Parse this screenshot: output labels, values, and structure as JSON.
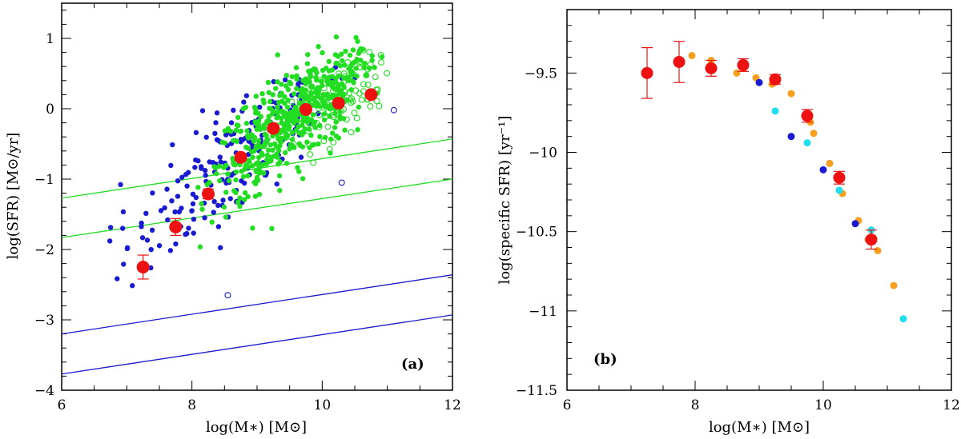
{
  "chart_data": [
    {
      "type": "scatter",
      "panel_label": "(a)",
      "xlabel": "log(M∗)   [M⊙]",
      "ylabel": "log(SFR)  [M⊙/yr]",
      "xlim": [
        6,
        12
      ],
      "ylim": [
        -4,
        1.5
      ],
      "xticks": [
        6,
        8,
        10,
        12
      ],
      "yticks": [
        -4,
        -3,
        -2,
        -1,
        0,
        1
      ],
      "colors": {
        "green": "#22dd22",
        "blue": "#1a1ad0",
        "red": "#ee1111"
      },
      "series": [
        {
          "name": "binned means",
          "color": "#ee1111",
          "x": [
            7.25,
            7.75,
            8.25,
            8.75,
            9.25,
            9.75,
            10.25,
            10.75
          ],
          "y": [
            -2.25,
            -1.68,
            -1.21,
            -0.69,
            -0.28,
            -0.01,
            0.08,
            0.2
          ],
          "err": [
            0.17,
            0.12,
            0.07,
            0.05,
            0.04,
            0.03,
            0.03,
            0.04
          ]
        }
      ],
      "lines": [
        {
          "name": "green upper limit line",
          "color": "#22dd22",
          "x": [
            6,
            12
          ],
          "y": [
            -1.27,
            -0.43
          ]
        },
        {
          "name": "green lower limit line",
          "color": "#22dd22",
          "x": [
            6,
            12
          ],
          "y": [
            -1.83,
            -1.0
          ]
        },
        {
          "name": "blue upper limit line",
          "color": "#1a1ad0",
          "x": [
            6,
            12
          ],
          "y": [
            -3.2,
            -2.36
          ]
        },
        {
          "name": "blue lower limit line",
          "color": "#1a1ad0",
          "x": [
            6,
            12
          ],
          "y": [
            -3.77,
            -2.93
          ]
        }
      ],
      "scatter_clouds": [
        {
          "name": "blue filled",
          "color": "#1a1ad0",
          "filled": true,
          "count": 200,
          "x_mean": 8.7,
          "x_sd": 0.85,
          "slope": 0.75,
          "y_offset": -7.2,
          "y_sd": 0.42,
          "xlim": [
            6.3,
            10.9
          ],
          "ylim": [
            -3.05,
            0.6
          ]
        },
        {
          "name": "green filled",
          "color": "#22dd22",
          "filled": true,
          "count": 520,
          "x_mean": 9.6,
          "x_sd": 0.65,
          "slope": 0.68,
          "y_offset": -6.65,
          "y_sd": 0.33,
          "xlim": [
            8.0,
            11.05
          ],
          "ylim": [
            -2.0,
            1.05
          ]
        },
        {
          "name": "green open",
          "color": "#22dd22",
          "filled": false,
          "count": 90,
          "x_mean": 10.3,
          "x_sd": 0.4,
          "slope": 0.6,
          "y_offset": -6.1,
          "y_sd": 0.3,
          "xlim": [
            9.0,
            11.0
          ],
          "ylim": [
            -1.8,
            1.1
          ]
        }
      ],
      "blue_open_points": {
        "color": "#1a1ad0",
        "x": [
          8.55,
          10.3,
          11.1
        ],
        "y": [
          -2.65,
          -1.05,
          -0.02
        ]
      }
    },
    {
      "type": "scatter",
      "panel_label": "(b)",
      "xlabel": "log(M∗)   [M⊙]",
      "ylabel": "log(specific SFR)  [yr⁻¹]",
      "xlim": [
        6,
        12
      ],
      "ylim": [
        -11.5,
        -9.1
      ],
      "xticks": [
        6,
        8,
        10,
        12
      ],
      "yticks": [
        -11.5,
        -11,
        -10.5,
        -10,
        -9.5
      ],
      "ytick_labels": [
        "−11.5",
        "−11",
        "−10.5",
        "−10",
        "−9.5"
      ],
      "series": [
        {
          "name": "red binned",
          "color": "#ee1111",
          "x": [
            7.25,
            7.75,
            8.25,
            8.75,
            9.25,
            9.75,
            10.25,
            10.75
          ],
          "y": [
            -9.5,
            -9.43,
            -9.47,
            -9.45,
            -9.54,
            -9.77,
            -10.16,
            -10.55
          ],
          "err": [
            0.16,
            0.13,
            0.05,
            0.04,
            0.03,
            0.04,
            0.04,
            0.06
          ]
        },
        {
          "name": "orange",
          "color": "#f5a020",
          "x": [
            7.95,
            8.25,
            8.65,
            8.75,
            8.95,
            9.2,
            9.5,
            9.8,
            9.85,
            10.1,
            10.3,
            10.55,
            10.7,
            10.85,
            11.1
          ],
          "y": [
            -9.39,
            -9.42,
            -9.5,
            -9.47,
            -9.53,
            -9.57,
            -9.63,
            -9.81,
            -9.88,
            -10.07,
            -10.26,
            -10.43,
            -10.55,
            -10.62,
            -10.84
          ]
        },
        {
          "name": "blue",
          "color": "#1a1ad0",
          "x": [
            9.0,
            9.5,
            10.0,
            10.5
          ],
          "y": [
            -9.56,
            -9.9,
            -10.11,
            -10.45
          ]
        },
        {
          "name": "cyan",
          "color": "#22ddee",
          "x": [
            9.25,
            9.75,
            10.25,
            10.75,
            11.25
          ],
          "y": [
            -9.74,
            -9.94,
            -10.24,
            -10.49,
            -11.05
          ]
        }
      ]
    }
  ]
}
